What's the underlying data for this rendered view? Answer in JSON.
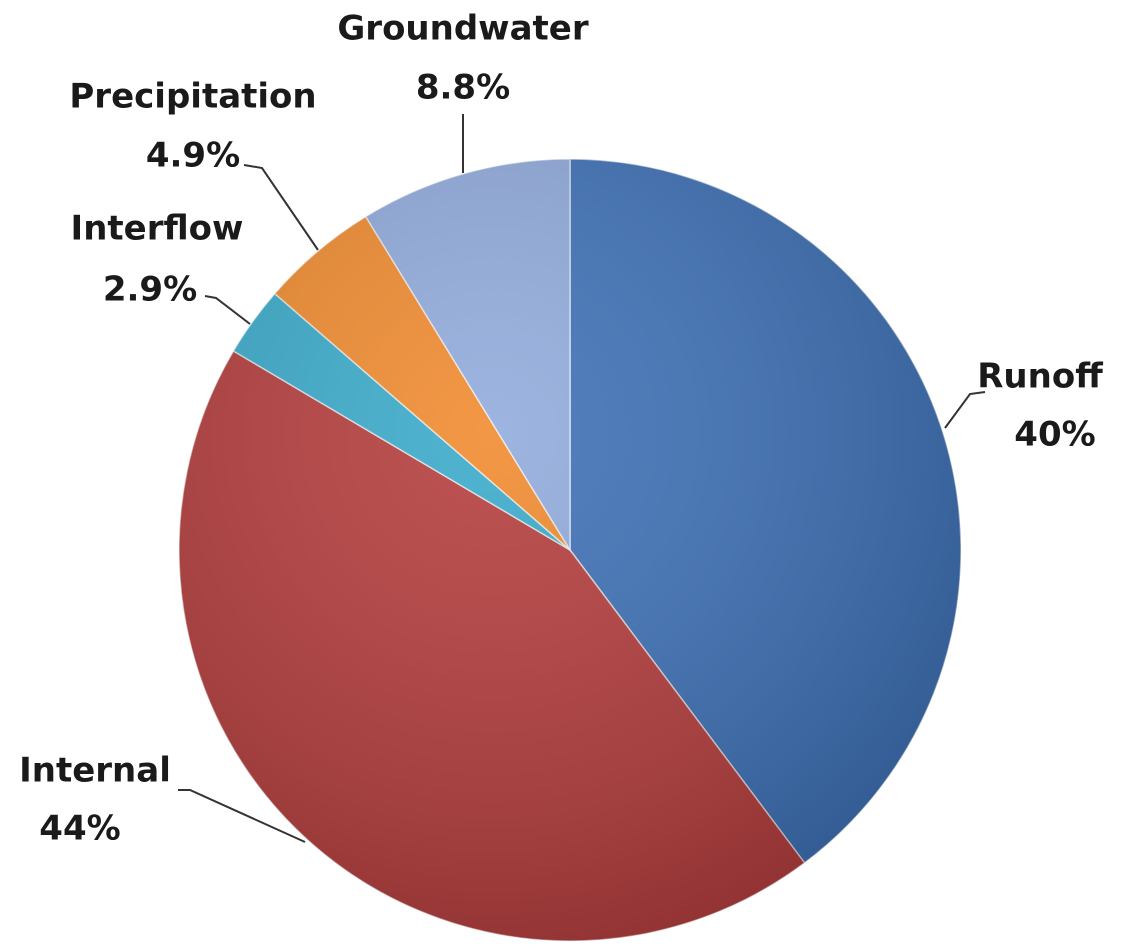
{
  "chart_data": {
    "type": "pie",
    "categories": [
      "Runoff",
      "Internal",
      "Interflow",
      "Precipitation",
      "Groundwater"
    ],
    "values": [
      40,
      44,
      2.9,
      4.9,
      8.8
    ],
    "value_labels": [
      "40%",
      "44%",
      "2.9%",
      "4.9%",
      "8.8%"
    ],
    "colors": [
      "#3b6fb6",
      "#b43a3a",
      "#37a9c9",
      "#f0892c",
      "#8faadc"
    ]
  }
}
